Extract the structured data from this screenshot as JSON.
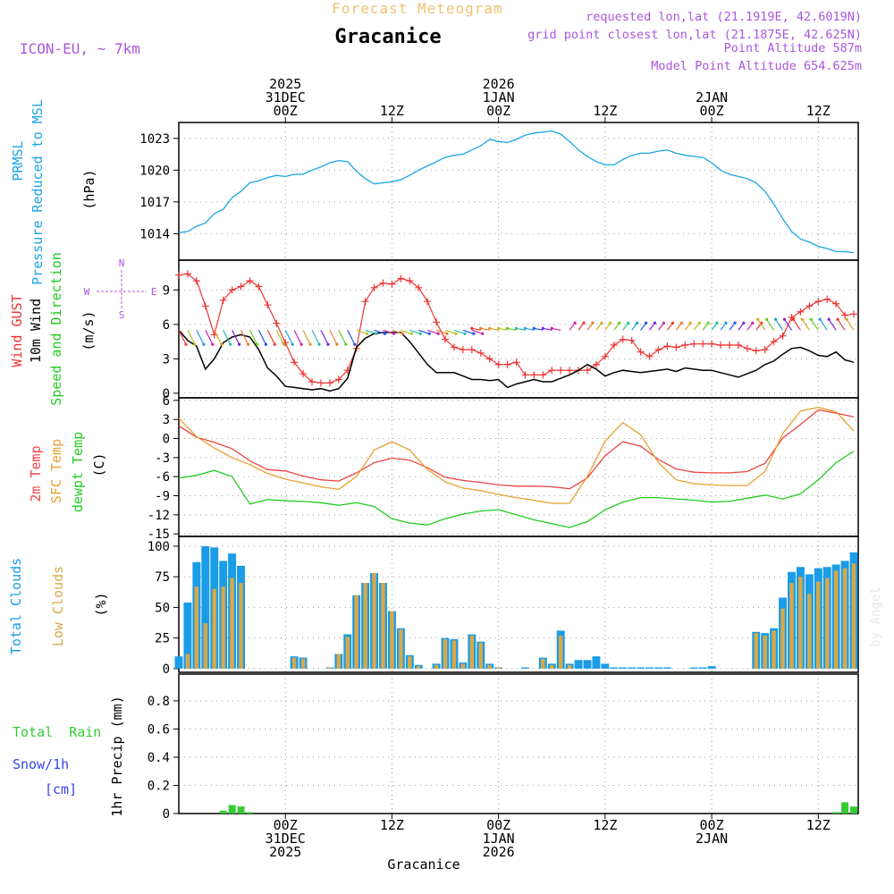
{
  "header": {
    "subtitle": "Forecast Meteogram",
    "title": "Gracanice",
    "model": "ICON-EU, ~ 7km",
    "info": [
      "requested lon,lat (21.1919E, 42.6019N)",
      "grid point closest lon,lat (21.1875E, 42.625N)",
      "Point Altitude 587m",
      "Model Point Altitude 654.625m"
    ],
    "bottom_label": "Gracanice",
    "watermark": "by Angel"
  },
  "colors": {
    "pressure": "#1aa4e6",
    "gust": "#ee3333",
    "wind": "#000000",
    "direction": "#22cc22",
    "temp2m": "#ee4444",
    "sfc": "#e8a030",
    "dewpt": "#22cc22",
    "total_cloud": "#1a9ce8",
    "low_cloud": "#d8a848",
    "rain": "#33cc33",
    "snow": "#3344ee",
    "header_purple": "#aa55dd",
    "subtitle_gold": "#f0c070"
  },
  "time_axis": {
    "top_ticks": [
      {
        "hour": 12,
        "lines": [
          "2025",
          "31DEC",
          "00Z"
        ]
      },
      {
        "hour": 24,
        "lines": [
          "12Z"
        ]
      },
      {
        "hour": 36,
        "lines": [
          "2026",
          "1JAN",
          "00Z"
        ]
      },
      {
        "hour": 48,
        "lines": [
          "12Z"
        ]
      },
      {
        "hour": 60,
        "lines": [
          "2JAN",
          "00Z"
        ]
      },
      {
        "hour": 72,
        "lines": [
          "12Z"
        ]
      }
    ],
    "bottom_ticks": [
      {
        "hour": 12,
        "lines": [
          "00Z",
          "31DEC",
          "2025"
        ]
      },
      {
        "hour": 24,
        "lines": [
          "12Z"
        ]
      },
      {
        "hour": 36,
        "lines": [
          "00Z",
          "1JAN",
          "2026"
        ]
      },
      {
        "hour": 48,
        "lines": [
          "12Z"
        ]
      },
      {
        "hour": 60,
        "lines": [
          "00Z",
          "2JAN"
        ]
      },
      {
        "hour": 72,
        "lines": [
          "12Z"
        ]
      }
    ]
  },
  "panel_labels": {
    "pressure": {
      "left1": "PRMSL",
      "left2": "Pressure Reduced to MSL",
      "unit": "(hPa)"
    },
    "wind": {
      "gust": "Wind GUST",
      "wind": "10m Wind",
      "dir": "Speed and Direction",
      "unit": "(m/s)",
      "compass_n": "N",
      "compass_s": "S",
      "compass_w": "W",
      "compass_e": "E"
    },
    "temp": {
      "t2m": "2m Temp",
      "sfc": "SFC Temp",
      "dew": "dewpt Temp",
      "unit": "(C)"
    },
    "clouds": {
      "total": "Total Clouds",
      "low": "Low Clouds",
      "unit": "(%)"
    },
    "precip": {
      "rain": "Total  Rain",
      "snow": "Snow/1h",
      "snow_unit": "[cm]",
      "unit": "1hr Precip (mm)"
    }
  },
  "chart_data": [
    {
      "type": "line",
      "name": "pressure",
      "title": "PRMSL Pressure Reduced to MSL",
      "ylabel": "(hPa)",
      "ylim": [
        1011.5,
        1024.5
      ],
      "yticks": [
        1014,
        1017,
        1020,
        1023
      ],
      "x_hours": [
        0,
        1,
        2,
        3,
        4,
        5,
        6,
        7,
        8,
        9,
        10,
        11,
        12,
        13,
        14,
        15,
        16,
        17,
        18,
        19,
        20,
        21,
        22,
        23,
        24,
        25,
        26,
        27,
        28,
        29,
        30,
        31,
        32,
        33,
        34,
        35,
        36,
        37,
        38,
        39,
        40,
        41,
        42,
        43,
        44,
        45,
        46,
        47,
        48,
        49,
        50,
        51,
        52,
        53,
        54,
        55,
        56,
        57,
        58,
        59,
        60,
        61,
        62,
        63,
        64,
        65,
        66,
        67,
        68,
        69,
        70,
        71,
        72,
        73,
        74,
        75,
        76
      ],
      "values": [
        1014.1,
        1014.2,
        1014.7,
        1015.0,
        1015.9,
        1016.3,
        1017.4,
        1018.0,
        1018.8,
        1019.0,
        1019.3,
        1019.5,
        1019.4,
        1019.6,
        1019.6,
        1020.0,
        1020.3,
        1020.7,
        1020.9,
        1020.8,
        1019.9,
        1019.2,
        1018.7,
        1018.8,
        1018.9,
        1019.1,
        1019.5,
        1020.0,
        1020.4,
        1020.8,
        1021.2,
        1021.4,
        1021.5,
        1021.9,
        1022.3,
        1022.9,
        1022.7,
        1022.6,
        1022.9,
        1023.3,
        1023.5,
        1023.6,
        1023.7,
        1023.4,
        1022.7,
        1021.9,
        1021.3,
        1020.8,
        1020.5,
        1020.5,
        1021.0,
        1021.4,
        1021.6,
        1021.6,
        1021.8,
        1021.9,
        1021.6,
        1021.4,
        1021.3,
        1021.2,
        1020.7,
        1020.0,
        1019.6,
        1019.4,
        1019.2,
        1018.8,
        1018.0,
        1016.8,
        1015.4,
        1014.2,
        1013.5,
        1013.2,
        1012.8,
        1012.6,
        1012.3,
        1012.3,
        1012.2
      ]
    },
    {
      "type": "line",
      "name": "wind",
      "title": "Wind GUST / 10m Wind Speed and Direction",
      "ylabel": "(m/s)",
      "ylim": [
        -0.4,
        11.6
      ],
      "yticks": [
        0,
        3,
        6,
        9
      ],
      "x_hours": [
        0,
        1,
        2,
        3,
        4,
        5,
        6,
        7,
        8,
        9,
        10,
        11,
        12,
        13,
        14,
        15,
        16,
        17,
        18,
        19,
        20,
        21,
        22,
        23,
        24,
        25,
        26,
        27,
        28,
        29,
        30,
        31,
        32,
        33,
        34,
        35,
        36,
        37,
        38,
        39,
        40,
        41,
        42,
        43,
        44,
        45,
        46,
        47,
        48,
        49,
        50,
        51,
        52,
        53,
        54,
        55,
        56,
        57,
        58,
        59,
        60,
        61,
        62,
        63,
        64,
        65,
        66,
        67,
        68,
        69,
        70,
        71,
        72,
        73,
        74,
        75,
        76
      ],
      "series": [
        {
          "name": "Wind GUST",
          "values": [
            10.3,
            10.4,
            9.8,
            7.6,
            5.1,
            8.1,
            9.0,
            9.3,
            9.8,
            9.3,
            7.7,
            6.1,
            4.4,
            2.7,
            1.7,
            1.0,
            0.9,
            0.9,
            1.2,
            2.0,
            3.9,
            8.0,
            9.2,
            9.6,
            9.5,
            10.0,
            9.8,
            9.2,
            8.0,
            6.2,
            4.7,
            4.0,
            3.8,
            3.8,
            3.5,
            3.0,
            2.5,
            2.5,
            2.7,
            1.6,
            1.6,
            1.6,
            2.0,
            2.0,
            2.0,
            2.0,
            2.0,
            2.5,
            3.2,
            4.2,
            4.7,
            4.6,
            3.6,
            3.2,
            3.8,
            4.1,
            4.0,
            4.2,
            4.3,
            4.3,
            4.3,
            4.2,
            4.2,
            4.2,
            3.9,
            3.7,
            3.8,
            4.5,
            5.0,
            6.6,
            7.1,
            7.6,
            8.0,
            8.2,
            7.8,
            6.8,
            6.9
          ]
        },
        {
          "name": "10m Wind",
          "values": [
            5.5,
            4.6,
            4.1,
            2.1,
            3.0,
            4.4,
            4.9,
            5.1,
            4.9,
            3.8,
            2.2,
            1.5,
            0.6,
            0.5,
            0.4,
            0.3,
            0.4,
            0.2,
            0.4,
            1.3,
            4.0,
            4.8,
            5.2,
            5.3,
            5.3,
            5.3,
            4.5,
            3.5,
            2.5,
            1.8,
            1.8,
            1.8,
            1.5,
            1.2,
            1.2,
            1.1,
            1.2,
            0.5,
            0.8,
            1.0,
            1.2,
            1.0,
            1.0,
            1.3,
            1.6,
            2.0,
            2.5,
            2.1,
            1.5,
            1.8,
            2.0,
            1.9,
            1.8,
            1.9,
            2.0,
            2.1,
            1.9,
            2.2,
            2.1,
            2.0,
            2.0,
            1.8,
            1.6,
            1.4,
            1.7,
            2.0,
            2.5,
            2.8,
            3.4,
            3.9,
            4.0,
            3.7,
            3.3,
            3.2,
            3.6,
            2.9,
            2.7
          ]
        }
      ],
      "direction_arrows": "colored barbs along ~5.5 m/s line"
    },
    {
      "type": "line",
      "name": "temperature",
      "title": "2m Temp / SFC Temp / dewpt Temp",
      "ylabel": "(C)",
      "ylim": [
        -15.4,
        6.4
      ],
      "yticks": [
        6,
        3,
        0,
        -3,
        -6,
        -9,
        -12,
        -15
      ],
      "x_hours": [
        0,
        2,
        4,
        6,
        8,
        10,
        12,
        14,
        16,
        18,
        20,
        22,
        24,
        26,
        28,
        30,
        32,
        34,
        36,
        38,
        40,
        42,
        44,
        46,
        48,
        50,
        52,
        54,
        56,
        58,
        60,
        62,
        64,
        66,
        68,
        70,
        72,
        74,
        76
      ],
      "series": [
        {
          "name": "2m Temp",
          "values": [
            2.0,
            0.2,
            -0.6,
            -1.6,
            -3.5,
            -4.9,
            -5.1,
            -5.9,
            -6.5,
            -6.7,
            -5.4,
            -3.8,
            -3.1,
            -3.4,
            -4.6,
            -6.1,
            -6.6,
            -6.9,
            -7.3,
            -7.5,
            -7.5,
            -7.6,
            -7.9,
            -6.2,
            -2.7,
            -0.5,
            -1.2,
            -3.3,
            -4.8,
            -5.3,
            -5.4,
            -5.4,
            -5.2,
            -3.9,
            0.1,
            2.2,
            4.5,
            4.0,
            3.4
          ]
        },
        {
          "name": "SFC Temp",
          "values": [
            3.2,
            0.3,
            -1.5,
            -3.0,
            -4.1,
            -5.5,
            -6.4,
            -7.0,
            -7.6,
            -8.0,
            -6.0,
            -1.8,
            -0.5,
            -1.8,
            -4.9,
            -6.8,
            -7.8,
            -8.2,
            -8.8,
            -9.3,
            -9.7,
            -10.2,
            -10.2,
            -6.0,
            -0.4,
            2.5,
            0.6,
            -3.8,
            -6.5,
            -7.1,
            -7.3,
            -7.4,
            -7.4,
            -5.2,
            0.8,
            4.3,
            4.9,
            4.2,
            1.2
          ]
        },
        {
          "name": "dewpt Temp",
          "values": [
            -6.2,
            -5.8,
            -5.0,
            -6.0,
            -10.3,
            -9.6,
            -9.8,
            -9.9,
            -10.1,
            -10.5,
            -10.1,
            -10.7,
            -12.6,
            -13.3,
            -13.6,
            -12.6,
            -11.9,
            -11.4,
            -11.2,
            -12.0,
            -12.8,
            -13.4,
            -14.0,
            -13.1,
            -11.2,
            -10.0,
            -9.3,
            -9.3,
            -9.5,
            -9.7,
            -10.0,
            -9.9,
            -9.4,
            -8.9,
            -9.5,
            -8.7,
            -6.5,
            -3.8,
            -2.0
          ]
        }
      ]
    },
    {
      "type": "bar",
      "name": "clouds",
      "title": "Total Clouds / Low Clouds",
      "ylabel": "(%)",
      "ylim": [
        -3,
        108
      ],
      "yticks": [
        0,
        25,
        50,
        75,
        100
      ],
      "x_hours": [
        0,
        1,
        2,
        3,
        4,
        5,
        6,
        7,
        8,
        9,
        10,
        11,
        12,
        13,
        14,
        15,
        16,
        17,
        18,
        19,
        20,
        21,
        22,
        23,
        24,
        25,
        26,
        27,
        28,
        29,
        30,
        31,
        32,
        33,
        34,
        35,
        36,
        37,
        38,
        39,
        40,
        41,
        42,
        43,
        44,
        45,
        46,
        47,
        48,
        49,
        50,
        51,
        52,
        53,
        54,
        55,
        56,
        57,
        58,
        59,
        60,
        61,
        62,
        63,
        64,
        65,
        66,
        67,
        68,
        69,
        70,
        71,
        72,
        73,
        74,
        75,
        76
      ],
      "series": [
        {
          "name": "Total Clouds",
          "values": [
            10,
            54,
            87,
            100,
            99,
            88,
            94,
            84,
            0,
            0,
            0,
            0,
            0,
            10,
            9,
            0,
            0,
            1,
            12,
            28,
            60,
            70,
            78,
            70,
            47,
            33,
            11,
            3,
            0,
            4,
            25,
            24,
            5,
            28,
            22,
            4,
            1,
            0,
            0,
            1,
            0,
            9,
            4,
            31,
            4,
            7,
            7,
            10,
            4,
            1,
            1,
            1,
            1,
            1,
            1,
            1,
            0,
            0,
            1,
            1,
            2,
            0,
            0,
            0,
            0,
            30,
            29,
            33,
            58,
            79,
            83,
            77,
            82,
            83,
            85,
            88,
            95
          ]
        },
        {
          "name": "Low Clouds",
          "values": [
            0,
            12,
            67,
            37,
            65,
            67,
            74,
            70,
            0,
            0,
            0,
            0,
            0,
            9,
            8,
            0,
            0,
            1,
            12,
            26,
            60,
            70,
            78,
            70,
            47,
            32,
            10,
            2,
            0,
            3,
            24,
            23,
            4,
            27,
            21,
            3,
            1,
            0,
            0,
            0,
            0,
            8,
            3,
            27,
            3,
            0,
            0,
            0,
            0,
            0,
            0,
            0,
            0,
            0,
            0,
            0,
            0,
            0,
            0,
            0,
            0,
            0,
            0,
            0,
            0,
            29,
            27,
            31,
            49,
            70,
            75,
            61,
            71,
            74,
            80,
            82,
            86
          ]
        }
      ]
    },
    {
      "type": "bar",
      "name": "precip",
      "title": "1hr Precip",
      "ylabel": "1hr Precip (mm)",
      "ylim": [
        0,
        0.99
      ],
      "yticks": [
        0,
        0.2,
        0.4,
        0.6,
        0.8
      ],
      "x_hours": [
        5,
        6,
        7,
        8,
        74,
        75,
        76
      ],
      "series": [
        {
          "name": "Total Rain",
          "values": [
            0.02,
            0.06,
            0.05,
            0.01,
            0.01,
            0.08,
            0.05
          ]
        }
      ]
    }
  ]
}
